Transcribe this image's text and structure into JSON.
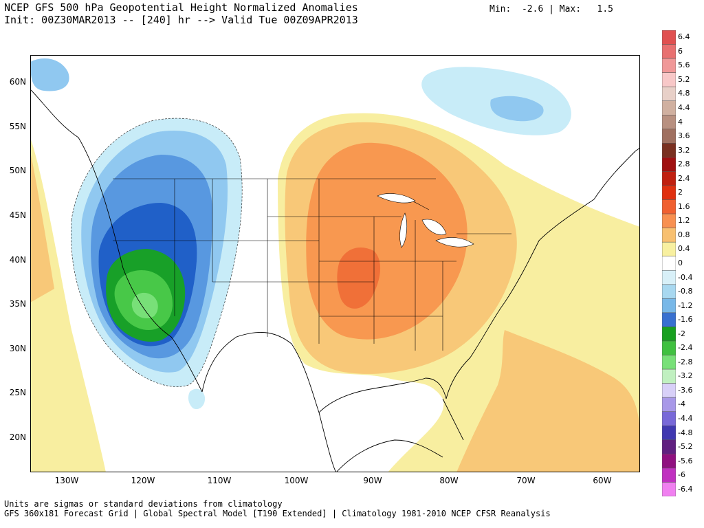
{
  "header": {
    "title_line1": "NCEP GFS 500 hPa Geopotential Height Normalized Anomalies",
    "title_line2": "Init: 00Z30MAR2013 -- [240] hr --> Valid Tue 00Z09APR2013",
    "minmax": "Min:  -2.6 | Max:   1.5"
  },
  "footer": {
    "line1": "Units are sigmas or standard deviations from climatology",
    "line2": "GFS 360x181 Forecast Grid | Global Spectral Model [T190 Extended] | Climatology 1981-2010 NCEP CFSR Reanalysis"
  },
  "axes": {
    "lat_labels": [
      "60N",
      "55N",
      "50N",
      "45N",
      "40N",
      "35N",
      "30N",
      "25N",
      "20N"
    ],
    "lon_labels": [
      "130W",
      "120W",
      "110W",
      "100W",
      "90W",
      "80W",
      "70W",
      "60W"
    ]
  },
  "colorbar": {
    "labels": [
      "6.4",
      "6",
      "5.6",
      "5.2",
      "4.8",
      "4.4",
      "4",
      "3.6",
      "3.2",
      "2.8",
      "2.4",
      "2",
      "1.6",
      "1.2",
      "0.8",
      "0.4",
      "0",
      "-0.4",
      "-0.8",
      "-1.2",
      "-1.6",
      "-2",
      "-2.4",
      "-2.8",
      "-3.2",
      "-3.6",
      "-4",
      "-4.4",
      "-4.8",
      "-5.2",
      "-5.6",
      "-6",
      "-6.4"
    ],
    "colors": [
      "#e05050",
      "#e87070",
      "#f09898",
      "#f8c8c8",
      "#e8d0c8",
      "#d0b0a0",
      "#b89080",
      "#a07060",
      "#7a3020",
      "#a01010",
      "#c02010",
      "#e03010",
      "#f06030",
      "#f89050",
      "#f8c070",
      "#f8f0a0",
      "#ffffff",
      "#d8f0f8",
      "#a8d8f0",
      "#78b8e8",
      "#3870d0",
      "#18a020",
      "#40c040",
      "#78e078",
      "#c0f0c0",
      "#d8d0f8",
      "#a898e8",
      "#7868d8",
      "#4038b0",
      "#602080",
      "#901080",
      "#c030c0",
      "#f080f0"
    ]
  }
}
